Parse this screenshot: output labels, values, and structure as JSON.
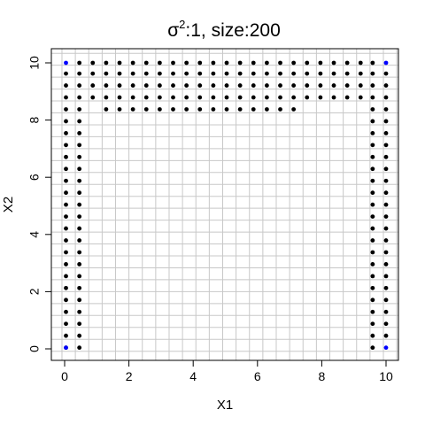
{
  "chart_data": {
    "type": "scatter",
    "title_prefix": "σ",
    "title_superscript": "2",
    "title_suffix": ":1, size:200",
    "xlabel": "X1",
    "ylabel": "X2",
    "xlim": [
      -0.5,
      10.5
    ],
    "ylim": [
      -0.5,
      10.5
    ],
    "x_ticks": [
      "0",
      "2",
      "4",
      "6",
      "8",
      "10"
    ],
    "y_ticks": [
      "0",
      "2",
      "4",
      "6",
      "8",
      "10"
    ],
    "grid": true,
    "grid_step": 0.4167,
    "series": [
      {
        "color": "#000000",
        "points": [
          [
            0.0417,
            0.0417
          ],
          [
            0.4583,
            0.0417
          ],
          [
            0.0417,
            0.4583
          ],
          [
            0.4583,
            0.4583
          ],
          [
            0.0417,
            0.875
          ],
          [
            0.4583,
            0.875
          ],
          [
            0.0417,
            1.2917
          ],
          [
            0.4583,
            1.2917
          ],
          [
            0.0417,
            1.7083
          ],
          [
            0.4583,
            1.7083
          ],
          [
            0.0417,
            2.125
          ],
          [
            0.4583,
            2.125
          ],
          [
            0.0417,
            2.5417
          ],
          [
            0.4583,
            2.5417
          ],
          [
            0.0417,
            2.9583
          ],
          [
            0.4583,
            2.9583
          ],
          [
            0.0417,
            3.375
          ],
          [
            0.4583,
            3.375
          ],
          [
            0.0417,
            3.7917
          ],
          [
            0.4583,
            3.7917
          ],
          [
            0.0417,
            4.2083
          ],
          [
            0.4583,
            4.2083
          ],
          [
            0.0417,
            4.625
          ],
          [
            0.4583,
            4.625
          ],
          [
            0.0417,
            5.0417
          ],
          [
            0.4583,
            5.0417
          ],
          [
            0.0417,
            5.4583
          ],
          [
            0.4583,
            5.4583
          ],
          [
            0.0417,
            5.875
          ],
          [
            0.4583,
            5.875
          ],
          [
            0.0417,
            6.2917
          ],
          [
            0.4583,
            6.2917
          ],
          [
            0.0417,
            6.7083
          ],
          [
            0.4583,
            6.7083
          ],
          [
            0.0417,
            7.125
          ],
          [
            0.4583,
            7.125
          ],
          [
            0.0417,
            7.5417
          ],
          [
            0.4583,
            7.5417
          ],
          [
            0.0417,
            7.9583
          ],
          [
            0.4583,
            7.9583
          ],
          [
            0.0417,
            8.375
          ],
          [
            0.4583,
            8.375
          ],
          [
            0.0417,
            8.7917
          ],
          [
            0.4583,
            8.7917
          ],
          [
            0.0417,
            9.2083
          ],
          [
            0.4583,
            9.2083
          ],
          [
            0.0417,
            9.625
          ],
          [
            0.4583,
            9.625
          ],
          [
            0.4583,
            10.0
          ],
          [
            9.5833,
            0.0417
          ],
          [
            10.0,
            0.4583
          ],
          [
            9.5833,
            0.4583
          ],
          [
            10.0,
            0.875
          ],
          [
            9.5833,
            0.875
          ],
          [
            10.0,
            1.2917
          ],
          [
            9.5833,
            1.2917
          ],
          [
            10.0,
            1.7083
          ],
          [
            9.5833,
            1.7083
          ],
          [
            10.0,
            2.125
          ],
          [
            9.5833,
            2.125
          ],
          [
            10.0,
            2.5417
          ],
          [
            9.5833,
            2.5417
          ],
          [
            10.0,
            2.9583
          ],
          [
            9.5833,
            2.9583
          ],
          [
            10.0,
            3.375
          ],
          [
            9.5833,
            3.375
          ],
          [
            10.0,
            3.7917
          ],
          [
            9.5833,
            3.7917
          ],
          [
            10.0,
            4.2083
          ],
          [
            9.5833,
            4.2083
          ],
          [
            10.0,
            4.625
          ],
          [
            9.5833,
            4.625
          ],
          [
            10.0,
            5.0417
          ],
          [
            9.5833,
            5.0417
          ],
          [
            10.0,
            5.4583
          ],
          [
            9.5833,
            5.4583
          ],
          [
            10.0,
            5.875
          ],
          [
            9.5833,
            5.875
          ],
          [
            10.0,
            6.2917
          ],
          [
            9.5833,
            6.2917
          ],
          [
            10.0,
            6.7083
          ],
          [
            9.5833,
            6.7083
          ],
          [
            10.0,
            7.125
          ],
          [
            9.5833,
            7.125
          ],
          [
            10.0,
            7.5417
          ],
          [
            9.5833,
            7.5417
          ],
          [
            10.0,
            7.9583
          ],
          [
            9.5833,
            7.9583
          ],
          [
            10.0,
            8.375
          ],
          [
            9.5833,
            8.375
          ],
          [
            10.0,
            8.7917
          ],
          [
            9.5833,
            8.7917
          ],
          [
            10.0,
            9.2083
          ],
          [
            9.5833,
            9.2083
          ],
          [
            10.0,
            9.625
          ],
          [
            9.5833,
            9.625
          ],
          [
            9.5833,
            10.0
          ],
          [
            0.875,
            10.0
          ],
          [
            1.2917,
            10.0
          ],
          [
            1.7083,
            10.0
          ],
          [
            2.125,
            10.0
          ],
          [
            2.5417,
            10.0
          ],
          [
            2.9583,
            10.0
          ],
          [
            3.375,
            10.0
          ],
          [
            3.7917,
            10.0
          ],
          [
            4.2083,
            10.0
          ],
          [
            4.625,
            10.0
          ],
          [
            5.0417,
            10.0
          ],
          [
            5.4583,
            10.0
          ],
          [
            5.875,
            10.0
          ],
          [
            6.2917,
            10.0
          ],
          [
            6.7083,
            10.0
          ],
          [
            7.125,
            10.0
          ],
          [
            7.5417,
            10.0
          ],
          [
            7.9583,
            10.0
          ],
          [
            8.375,
            10.0
          ],
          [
            8.7917,
            10.0
          ],
          [
            9.2083,
            10.0
          ],
          [
            0.875,
            9.625
          ],
          [
            1.2917,
            9.625
          ],
          [
            1.7083,
            9.625
          ],
          [
            2.125,
            9.625
          ],
          [
            2.5417,
            9.625
          ],
          [
            2.9583,
            9.625
          ],
          [
            3.375,
            9.625
          ],
          [
            3.7917,
            9.625
          ],
          [
            4.2083,
            9.625
          ],
          [
            4.625,
            9.625
          ],
          [
            5.0417,
            9.625
          ],
          [
            5.4583,
            9.625
          ],
          [
            5.875,
            9.625
          ],
          [
            6.2917,
            9.625
          ],
          [
            6.7083,
            9.625
          ],
          [
            7.125,
            9.625
          ],
          [
            7.5417,
            9.625
          ],
          [
            7.9583,
            9.625
          ],
          [
            8.375,
            9.625
          ],
          [
            8.7917,
            9.625
          ],
          [
            9.2083,
            9.625
          ],
          [
            0.875,
            9.2083
          ],
          [
            1.2917,
            9.2083
          ],
          [
            1.7083,
            9.2083
          ],
          [
            2.125,
            9.2083
          ],
          [
            2.5417,
            9.2083
          ],
          [
            2.9583,
            9.2083
          ],
          [
            3.375,
            9.2083
          ],
          [
            3.7917,
            9.2083
          ],
          [
            4.2083,
            9.2083
          ],
          [
            4.625,
            9.2083
          ],
          [
            5.0417,
            9.2083
          ],
          [
            5.4583,
            9.2083
          ],
          [
            5.875,
            9.2083
          ],
          [
            6.2917,
            9.2083
          ],
          [
            6.7083,
            9.2083
          ],
          [
            7.125,
            9.2083
          ],
          [
            7.5417,
            9.2083
          ],
          [
            7.9583,
            9.2083
          ],
          [
            8.375,
            9.2083
          ],
          [
            8.7917,
            9.2083
          ],
          [
            9.2083,
            9.2083
          ],
          [
            0.875,
            8.7917
          ],
          [
            1.2917,
            8.7917
          ],
          [
            1.7083,
            8.7917
          ],
          [
            2.125,
            8.7917
          ],
          [
            2.5417,
            8.7917
          ],
          [
            2.9583,
            8.7917
          ],
          [
            3.375,
            8.7917
          ],
          [
            3.7917,
            8.7917
          ],
          [
            4.2083,
            8.7917
          ],
          [
            4.625,
            8.7917
          ],
          [
            5.0417,
            8.7917
          ],
          [
            5.4583,
            8.7917
          ],
          [
            5.875,
            8.7917
          ],
          [
            6.2917,
            8.7917
          ],
          [
            6.7083,
            8.7917
          ],
          [
            7.125,
            8.7917
          ],
          [
            7.5417,
            8.7917
          ],
          [
            7.9583,
            8.7917
          ],
          [
            8.375,
            8.7917
          ],
          [
            8.7917,
            8.7917
          ],
          [
            9.2083,
            8.7917
          ],
          [
            1.2917,
            8.375
          ],
          [
            1.7083,
            8.375
          ],
          [
            2.125,
            8.375
          ],
          [
            2.5417,
            8.375
          ],
          [
            2.9583,
            8.375
          ],
          [
            3.375,
            8.375
          ],
          [
            3.7917,
            8.375
          ],
          [
            4.2083,
            8.375
          ],
          [
            4.625,
            8.375
          ],
          [
            5.0417,
            8.375
          ],
          [
            5.4583,
            8.375
          ],
          [
            5.875,
            8.375
          ],
          [
            6.2917,
            8.375
          ],
          [
            6.7083,
            8.375
          ],
          [
            7.125,
            8.375
          ]
        ]
      },
      {
        "color": "#0000ff",
        "points": [
          [
            0.0417,
            10.0
          ],
          [
            10.0,
            10.0
          ],
          [
            0.0417,
            0.0417
          ],
          [
            10.0,
            0.0417
          ]
        ]
      }
    ]
  }
}
